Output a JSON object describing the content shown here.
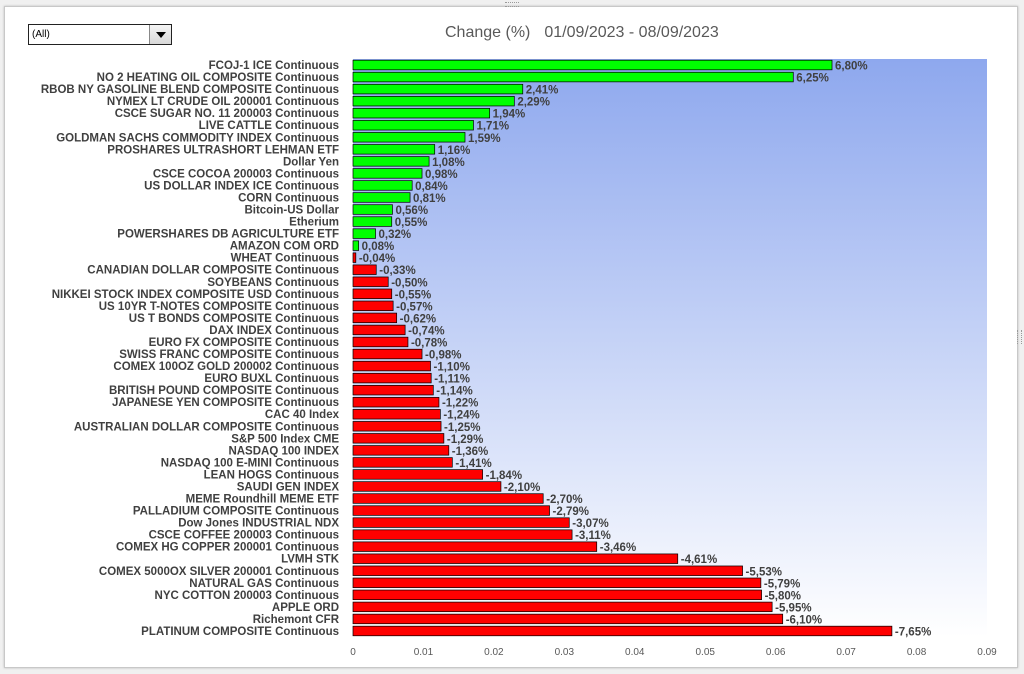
{
  "filter": {
    "value": "(All)"
  },
  "chart_title": {
    "metric": "Change (%)",
    "date_range": "01/09/2023 - 08/09/2023"
  },
  "colors": {
    "positive": "#00ff00",
    "negative": "#ff0000",
    "plot_top": "#8ea8ee",
    "plot_bottom": "#ffffff",
    "label": "#404040"
  },
  "chart_data": {
    "type": "bar",
    "orientation": "horizontal",
    "categories": [
      "FCOJ-1 ICE Continuous",
      "NO 2 HEATING OIL COMPOSITE Continuous",
      "RBOB NY GASOLINE BLEND COMPOSITE Continuous",
      "NYMEX LT CRUDE OIL 200001 Continuous",
      "CSCE SUGAR NO. 11 200003 Continuous",
      "LIVE CATTLE Continuous",
      "GOLDMAN SACHS COMMODITY INDEX Continuous",
      "PROSHARES ULTRASHORT LEHMAN ETF",
      "Dollar Yen",
      "CSCE COCOA 200003 Continuous",
      "US DOLLAR INDEX ICE Continuous",
      "CORN Continuous",
      "Bitcoin-US Dollar",
      "Etherium",
      "POWERSHARES DB AGRICULTURE ETF",
      "AMAZON COM ORD",
      "WHEAT Continuous",
      "CANADIAN DOLLAR COMPOSITE Continuous",
      "SOYBEANS Continuous",
      "NIKKEI STOCK INDEX COMPOSITE USD Continuous",
      "US 10YR T-NOTES COMPOSITE Continuous",
      "US T BONDS COMPOSITE Continuous",
      "DAX INDEX Continuous",
      "EURO FX COMPOSITE Continuous",
      "SWISS FRANC COMPOSITE Continuous",
      "COMEX 100OZ GOLD 200002 Continuous",
      "EURO BUXL Continuous",
      "BRITISH POUND COMPOSITE Continuous",
      "JAPANESE YEN COMPOSITE Continuous",
      "CAC 40 Index",
      "AUSTRALIAN DOLLAR COMPOSITE Continuous",
      "S&P 500 Index CME",
      "NASDAQ 100 INDEX",
      "NASDAQ 100 E-MINI Continuous",
      "LEAN HOGS Continuous",
      "SAUDI GEN INDEX",
      "MEME Roundhill MEME ETF",
      "PALLADIUM COMPOSITE Continuous",
      "Dow Jones INDUSTRIAL NDX",
      "CSCE COFFEE 200003 Continuous",
      "COMEX HG COPPER 200001 Continuous",
      "LVMH STK",
      "COMEX 5000OX SILVER 200001 Continuous",
      "NATURAL GAS Continuous",
      "NYC COTTON 200003 Continuous",
      "APPLE ORD",
      "Richemont CFR",
      "PLATINUM COMPOSITE Continuous"
    ],
    "values": [
      0.068,
      0.0625,
      0.0241,
      0.0229,
      0.0194,
      0.0171,
      0.0159,
      0.0116,
      0.0108,
      0.0098,
      0.0084,
      0.0081,
      0.0056,
      0.0055,
      0.0032,
      0.0008,
      -0.0004,
      -0.0033,
      -0.005,
      -0.0055,
      -0.0057,
      -0.0062,
      -0.0074,
      -0.0078,
      -0.0098,
      -0.011,
      -0.0111,
      -0.0114,
      -0.0122,
      -0.0124,
      -0.0125,
      -0.0129,
      -0.0136,
      -0.0141,
      -0.0184,
      -0.021,
      -0.027,
      -0.0279,
      -0.0307,
      -0.0311,
      -0.0346,
      -0.0461,
      -0.0553,
      -0.0579,
      -0.058,
      -0.0595,
      -0.061,
      -0.0765
    ],
    "data_labels": [
      "6,80%",
      "6,25%",
      "2,41%",
      "2,29%",
      "1,94%",
      "1,71%",
      "1,59%",
      "1,16%",
      "1,08%",
      "0,98%",
      "0,84%",
      "0,81%",
      "0,56%",
      "0,55%",
      "0,32%",
      "0,08%",
      "-0,04%",
      "-0,33%",
      "-0,50%",
      "-0,55%",
      "-0,57%",
      "-0,62%",
      "-0,74%",
      "-0,78%",
      "-0,98%",
      "-1,10%",
      "-1,11%",
      "-1,14%",
      "-1,22%",
      "-1,24%",
      "-1,25%",
      "-1,29%",
      "-1,36%",
      "-1,41%",
      "-1,84%",
      "-2,10%",
      "-2,70%",
      "-2,79%",
      "-3,07%",
      "-3,11%",
      "-3,46%",
      "-4,61%",
      "-5,53%",
      "-5,79%",
      "-5,80%",
      "-5,95%",
      "-6,10%",
      "-7,65%"
    ],
    "bar_length": "absolute value",
    "xlim": [
      0,
      0.09
    ],
    "xticks": [
      0,
      0.01,
      0.02,
      0.03,
      0.04,
      0.05,
      0.06,
      0.07,
      0.08,
      0.09
    ],
    "xtick_labels": [
      "0",
      "0.01",
      "0.02",
      "0.03",
      "0.04",
      "0.05",
      "0.06",
      "0.07",
      "0.08",
      "0.09"
    ],
    "grid": false,
    "legend": "none"
  }
}
